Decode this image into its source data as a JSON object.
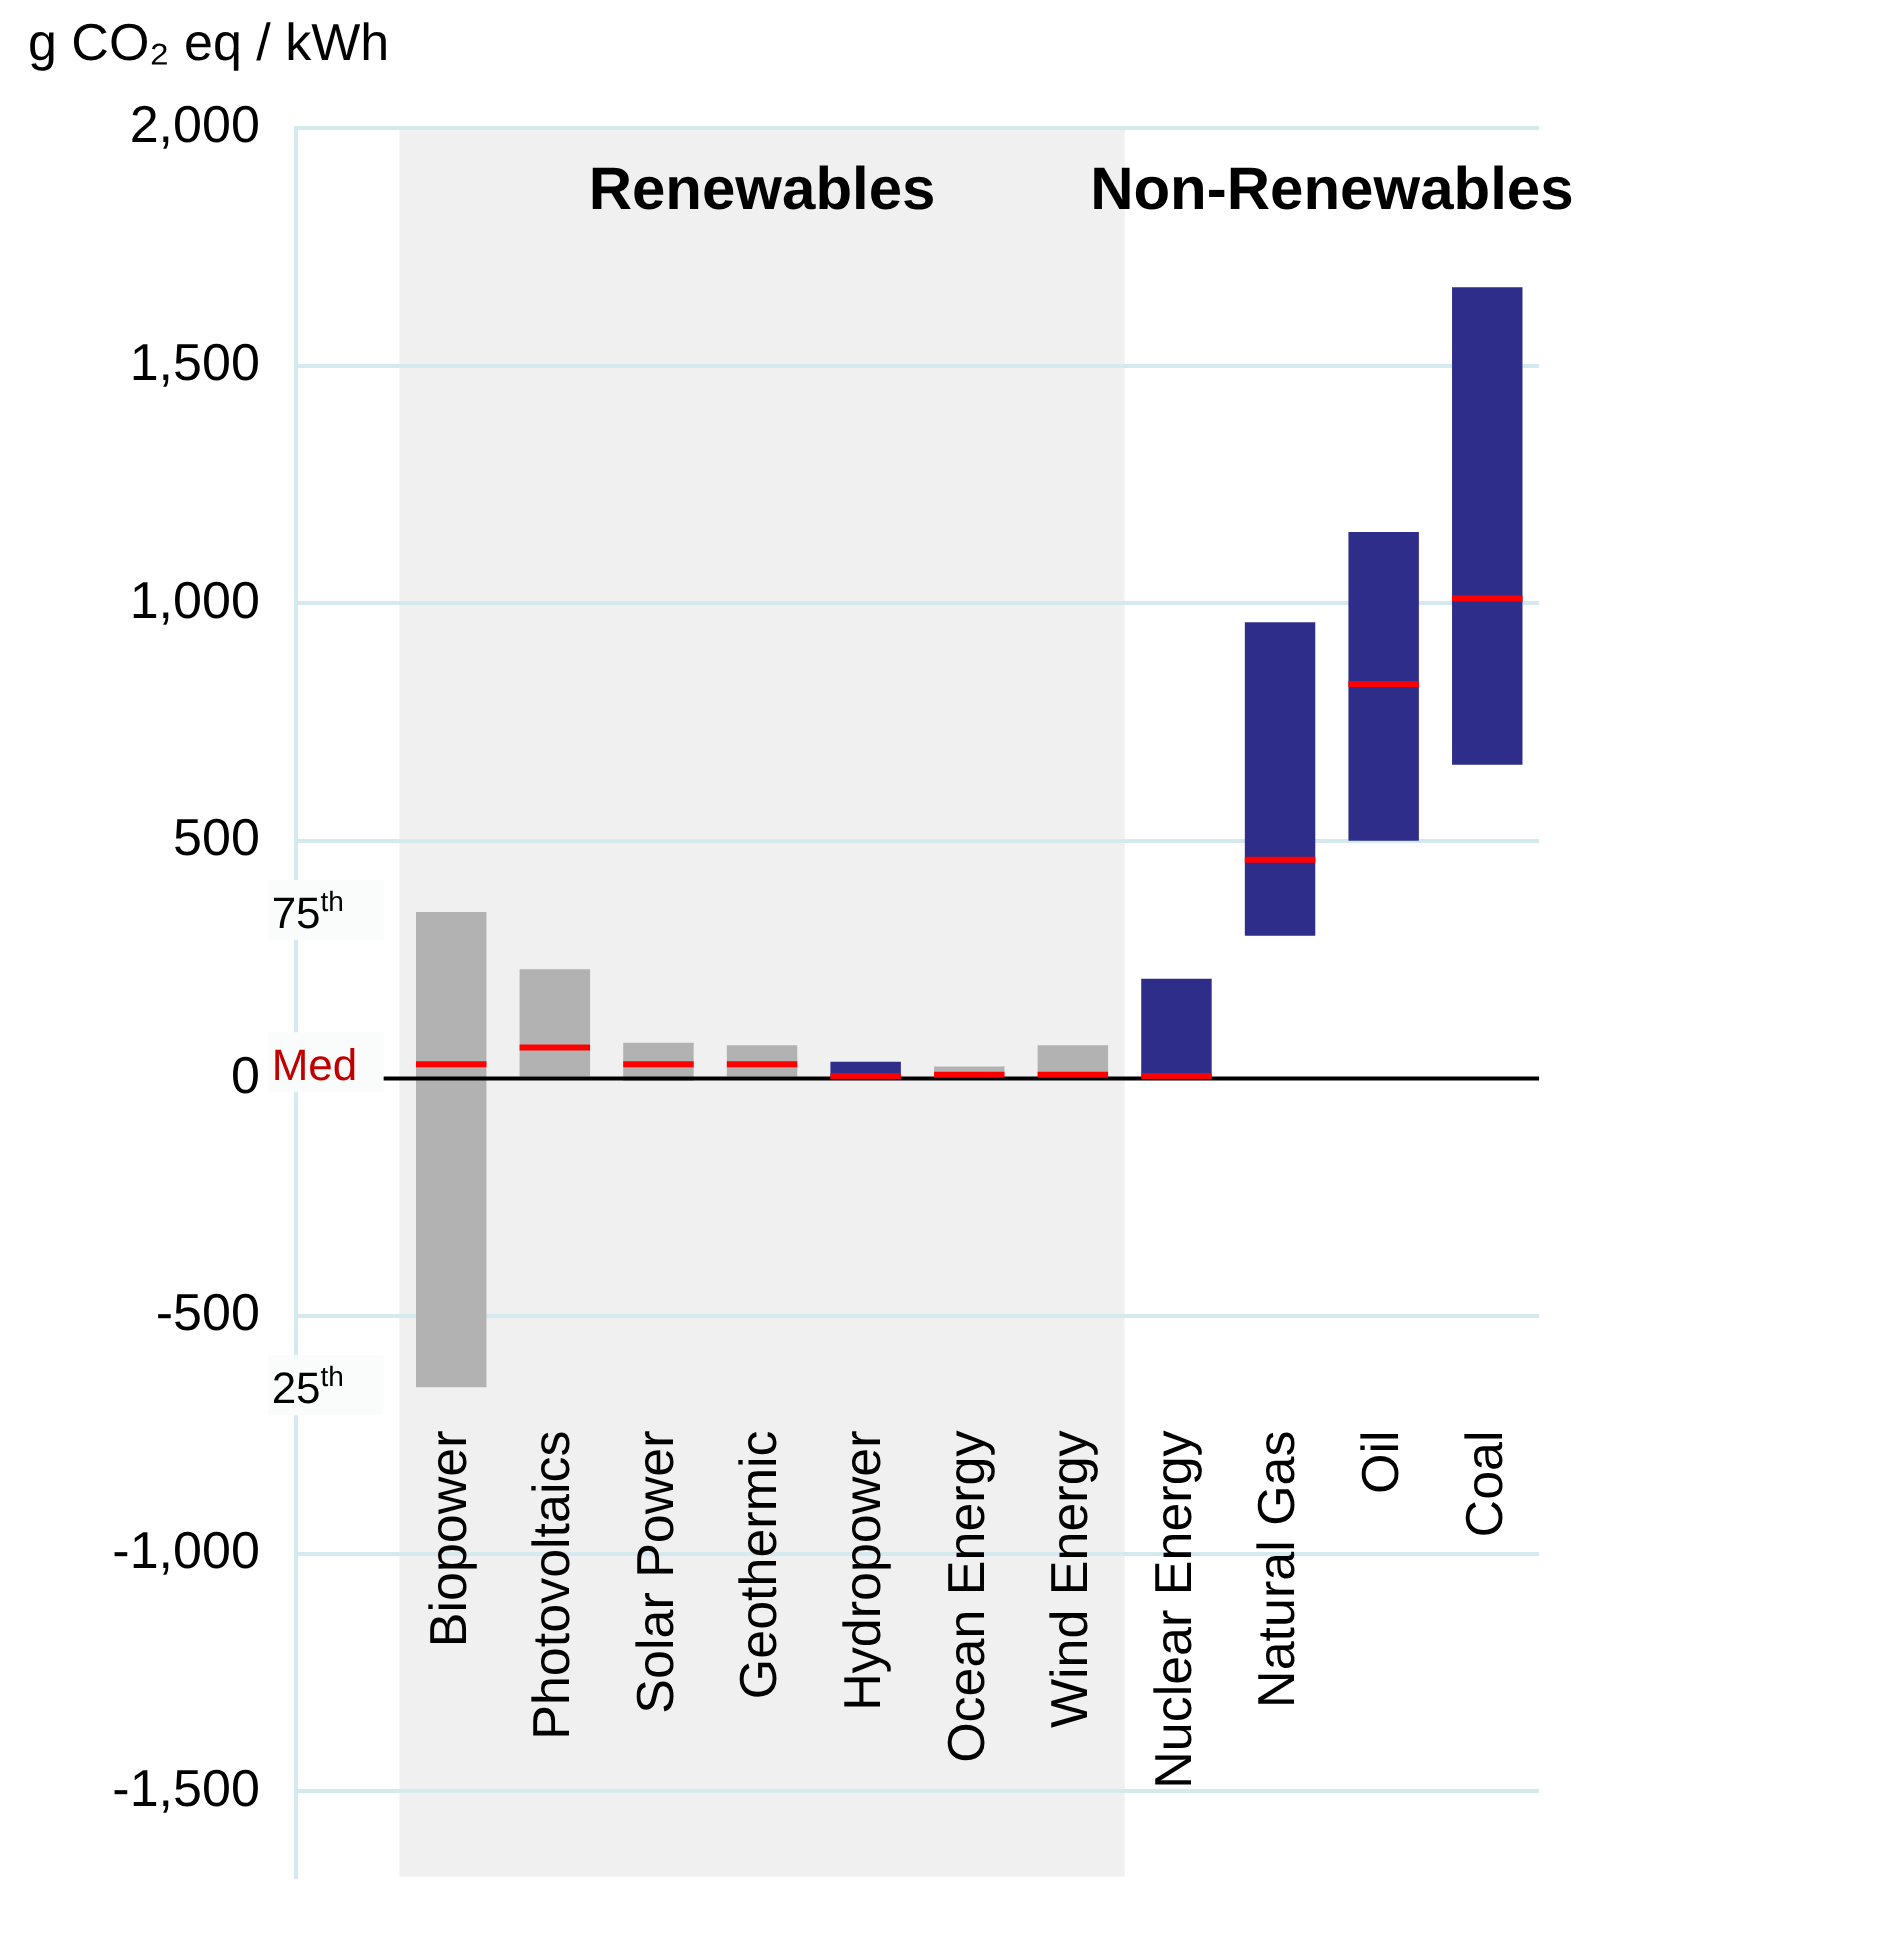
{
  "chart_data": {
    "type": "box",
    "ylabel": "g CO₂ eq / kWh",
    "categories": [
      null,
      "Biopower",
      "Photovoltaics",
      "Solar Power",
      "Geothermic",
      "Hydropower",
      "Ocean Energy",
      "Wind Energy",
      "Nuclear Energy",
      "Natural Gas",
      "Oil",
      "Coal"
    ],
    "boxes": [
      null,
      {
        "low": -650,
        "q1": -650,
        "median": 30,
        "q3": 350,
        "high": 350
      },
      {
        "low": 0,
        "q1": 0,
        "median": 65,
        "q3": 230,
        "high": 230
      },
      {
        "low": -5,
        "q1": -5,
        "median": 30,
        "q3": 75,
        "high": 75
      },
      {
        "low": 0,
        "q1": 0,
        "median": 30,
        "q3": 70,
        "high": 70
      },
      {
        "low": 0,
        "q1": 0,
        "median": 5,
        "q3": 35,
        "high": 35
      },
      {
        "low": 0,
        "q1": 0,
        "median": 8,
        "q3": 25,
        "high": 25
      },
      {
        "low": 0,
        "q1": 0,
        "median": 8,
        "q3": 70,
        "high": 70
      },
      {
        "low": 0,
        "q1": 0,
        "median": 5,
        "q3": 210,
        "high": 210
      },
      {
        "low": 300,
        "q1": 300,
        "median": 460,
        "q3": 960,
        "high": 960
      },
      {
        "low": 500,
        "q1": 500,
        "median": 830,
        "q3": 1150,
        "high": 1150
      },
      {
        "low": 660,
        "q1": 660,
        "median": 1010,
        "q3": 1665,
        "high": 1665
      }
    ],
    "colors": [
      null,
      "#b2b2b2",
      "#b2b2b2",
      "#b2b2b2",
      "#b2b2b2",
      "#2e2e8a",
      "#b2b2b2",
      "#b2b2b2",
      "#2e2e8a",
      "#2e2e8a",
      "#2e2e8a",
      "#2e2e8a"
    ],
    "ylim": [
      -1680,
      2000
    ],
    "yticks": [
      {
        "value": 2000,
        "label": "2,000"
      },
      {
        "value": 1500,
        "label": "1,500"
      },
      {
        "value": 1000,
        "label": "1,000"
      },
      500,
      0,
      -500,
      {
        "value": -1000,
        "label": "-1,000"
      },
      {
        "value": -1500,
        "label": "-1,500"
      }
    ],
    "grid": "y",
    "ref_lines": [
      {
        "axis": "y",
        "value": 0,
        "color": "#000000"
      }
    ],
    "bands": [
      {
        "axis": "x",
        "from": "Biopower",
        "to": "Wind Energy",
        "label": "Renewables",
        "color": "#f0f0f0"
      }
    ],
    "annotations": [
      "75$^{th}$",
      "Med",
      "25$^{th}$",
      "Non-Renewables"
    ],
    "legend": false
  }
}
